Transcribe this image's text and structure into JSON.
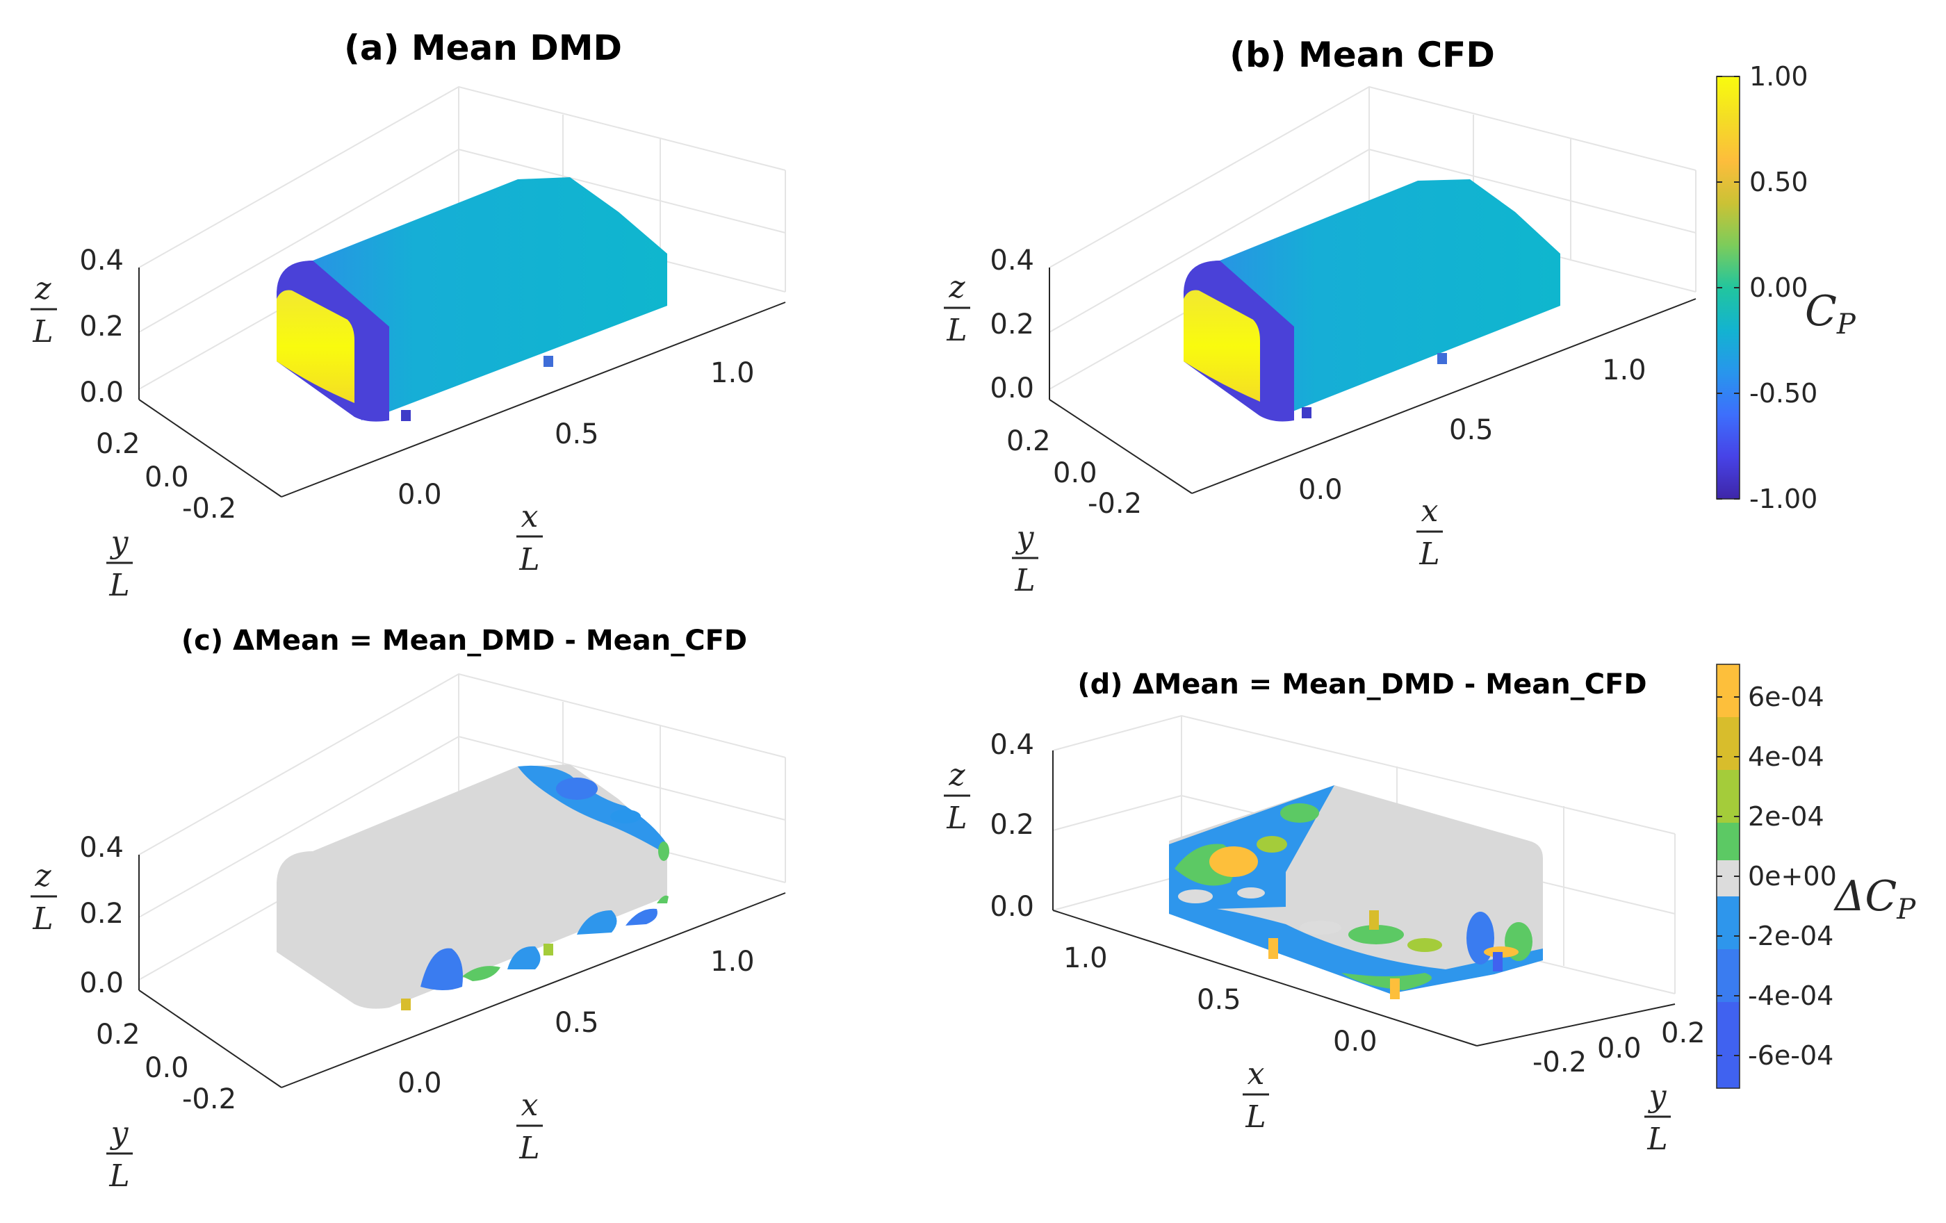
{
  "figure": {
    "colors": {
      "cp_scale": [
        "#3e26a8",
        "#4743e7",
        "#3d6ffc",
        "#2896ec",
        "#13b3d0",
        "#22c59e",
        "#7ccc5b",
        "#cbc235",
        "#fdbd3c",
        "#f4dd25",
        "#f9fb0e"
      ],
      "delta_scale": [
        "#4062f0",
        "#3a7cf0",
        "#2e96ec",
        "#dcdcdc",
        "#5cc964",
        "#a4cc3a",
        "#d8bd2c",
        "#fdbf3b"
      ],
      "neutral_surface": "#d9d9d9"
    }
  },
  "chart_data": [
    {
      "type": "surface3d",
      "panel": "a",
      "title": "(a) Mean DMD",
      "x_axis": {
        "label_num": "x",
        "label_den": "L",
        "ticks": [
          "0.0",
          "0.5",
          "1.0"
        ]
      },
      "y_axis": {
        "label_num": "y",
        "label_den": "L",
        "ticks": [
          "0.2",
          "0.0",
          "-0.2"
        ]
      },
      "z_axis": {
        "label_num": "z",
        "label_den": "L",
        "ticks": [
          "0.4",
          "0.2",
          "0.0"
        ]
      },
      "quantity": "C_P",
      "body_mean_cp": -0.05,
      "front_face_cp": 1.0,
      "front_edge_cp": -1.0,
      "grid": true
    },
    {
      "type": "surface3d",
      "panel": "b",
      "title": "(b) Mean CFD",
      "x_axis": {
        "label_num": "x",
        "label_den": "L",
        "ticks": [
          "0.0",
          "0.5",
          "1.0"
        ]
      },
      "y_axis": {
        "label_num": "y",
        "label_den": "L",
        "ticks": [
          "0.2",
          "0.0",
          "-0.2"
        ]
      },
      "z_axis": {
        "label_num": "z",
        "label_den": "L",
        "ticks": [
          "0.4",
          "0.2",
          "0.0"
        ]
      },
      "quantity": "C_P",
      "body_mean_cp": -0.05,
      "front_face_cp": 1.0,
      "front_edge_cp": -1.0,
      "grid": true,
      "colorbar": {
        "label_base": "C",
        "label_sub": "P",
        "ticks": [
          "1.00",
          "0.50",
          "0.00",
          "-0.50",
          "-1.00"
        ],
        "range": [
          -1.0,
          1.0
        ],
        "placement": "right"
      }
    },
    {
      "type": "surface3d",
      "panel": "c",
      "title": "(c) ΔMean = Mean_DMD - Mean_CFD",
      "x_axis": {
        "label_num": "x",
        "label_den": "L",
        "ticks": [
          "0.0",
          "0.5",
          "1.0"
        ]
      },
      "y_axis": {
        "label_num": "y",
        "label_den": "L",
        "ticks": [
          "0.2",
          "0.0",
          "-0.2"
        ]
      },
      "z_axis": {
        "label_num": "z",
        "label_den": "L",
        "ticks": [
          "0.4",
          "0.2",
          "0.0"
        ]
      },
      "quantity": "ΔC_P",
      "body_mean_cp": 0.0,
      "grid": true
    },
    {
      "type": "surface3d",
      "panel": "d",
      "title": "(d) ΔMean = Mean_DMD - Mean_CFD",
      "x_axis": {
        "label_num": "x",
        "label_den": "L",
        "ticks": [
          "1.0",
          "0.5",
          "0.0"
        ]
      },
      "y_axis": {
        "label_num": "y",
        "label_den": "L",
        "ticks": [
          "-0.2",
          "0.0",
          "0.2"
        ]
      },
      "z_axis": {
        "label_num": "z",
        "label_den": "L",
        "ticks": [
          "0.4",
          "0.2",
          "0.0"
        ]
      },
      "quantity": "ΔC_P",
      "body_mean_cp": 0.0,
      "grid": true,
      "colorbar": {
        "label_base": "ΔC",
        "label_sub": "P",
        "ticks": [
          "6e-04",
          "4e-04",
          "2e-04",
          "0e+00",
          "-2e-04",
          "-4e-04",
          "-6e-04"
        ],
        "range": [
          -0.0007,
          0.0007
        ],
        "placement": "right"
      }
    }
  ]
}
